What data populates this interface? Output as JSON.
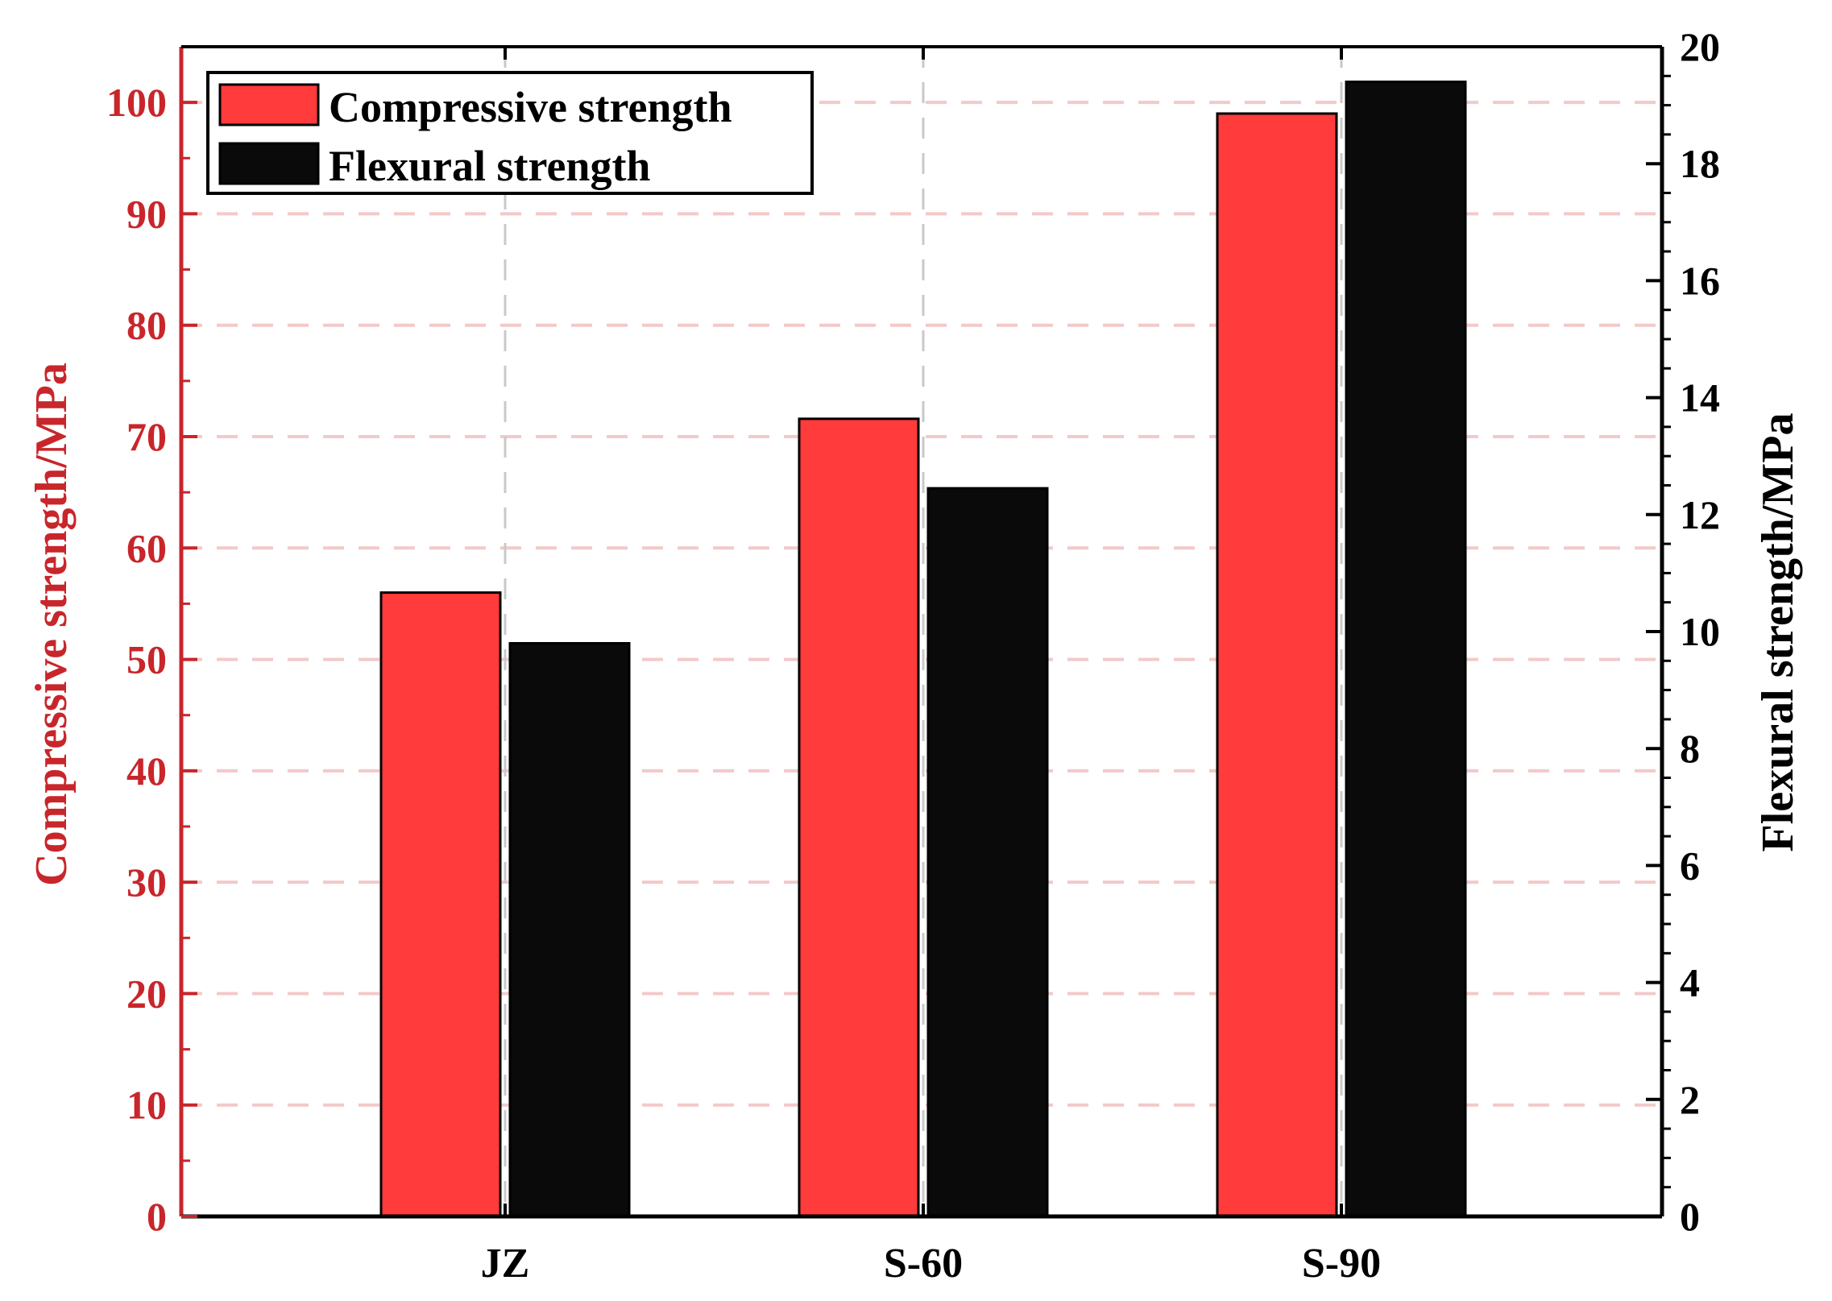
{
  "chart_data": {
    "type": "bar",
    "categories": [
      "JZ",
      "S-60",
      "S-90"
    ],
    "series": [
      {
        "name": "Compressive strength",
        "axis": "left",
        "values": [
          56.0,
          71.6,
          99.0
        ],
        "color": "#ff3b3b"
      },
      {
        "name": "Flexural strength",
        "axis": "right",
        "values": [
          9.8,
          12.45,
          19.4
        ],
        "color": "#0a0a0a"
      }
    ],
    "y_left": {
      "label": "Compressive strength/MPa",
      "lim": [
        0,
        105
      ],
      "ticks": [
        0,
        10,
        20,
        30,
        40,
        50,
        60,
        70,
        80,
        90,
        100
      ],
      "color": "#c8262b"
    },
    "y_right": {
      "label": "Flexural strength/MPa",
      "lim": [
        0,
        20
      ],
      "ticks": [
        0,
        2,
        4,
        6,
        8,
        10,
        12,
        14,
        16,
        18,
        20
      ],
      "color": "#000000"
    },
    "grid": true,
    "legend": {
      "position": "top-left",
      "entries": [
        "Compressive strength",
        "Flexural strength"
      ]
    }
  }
}
